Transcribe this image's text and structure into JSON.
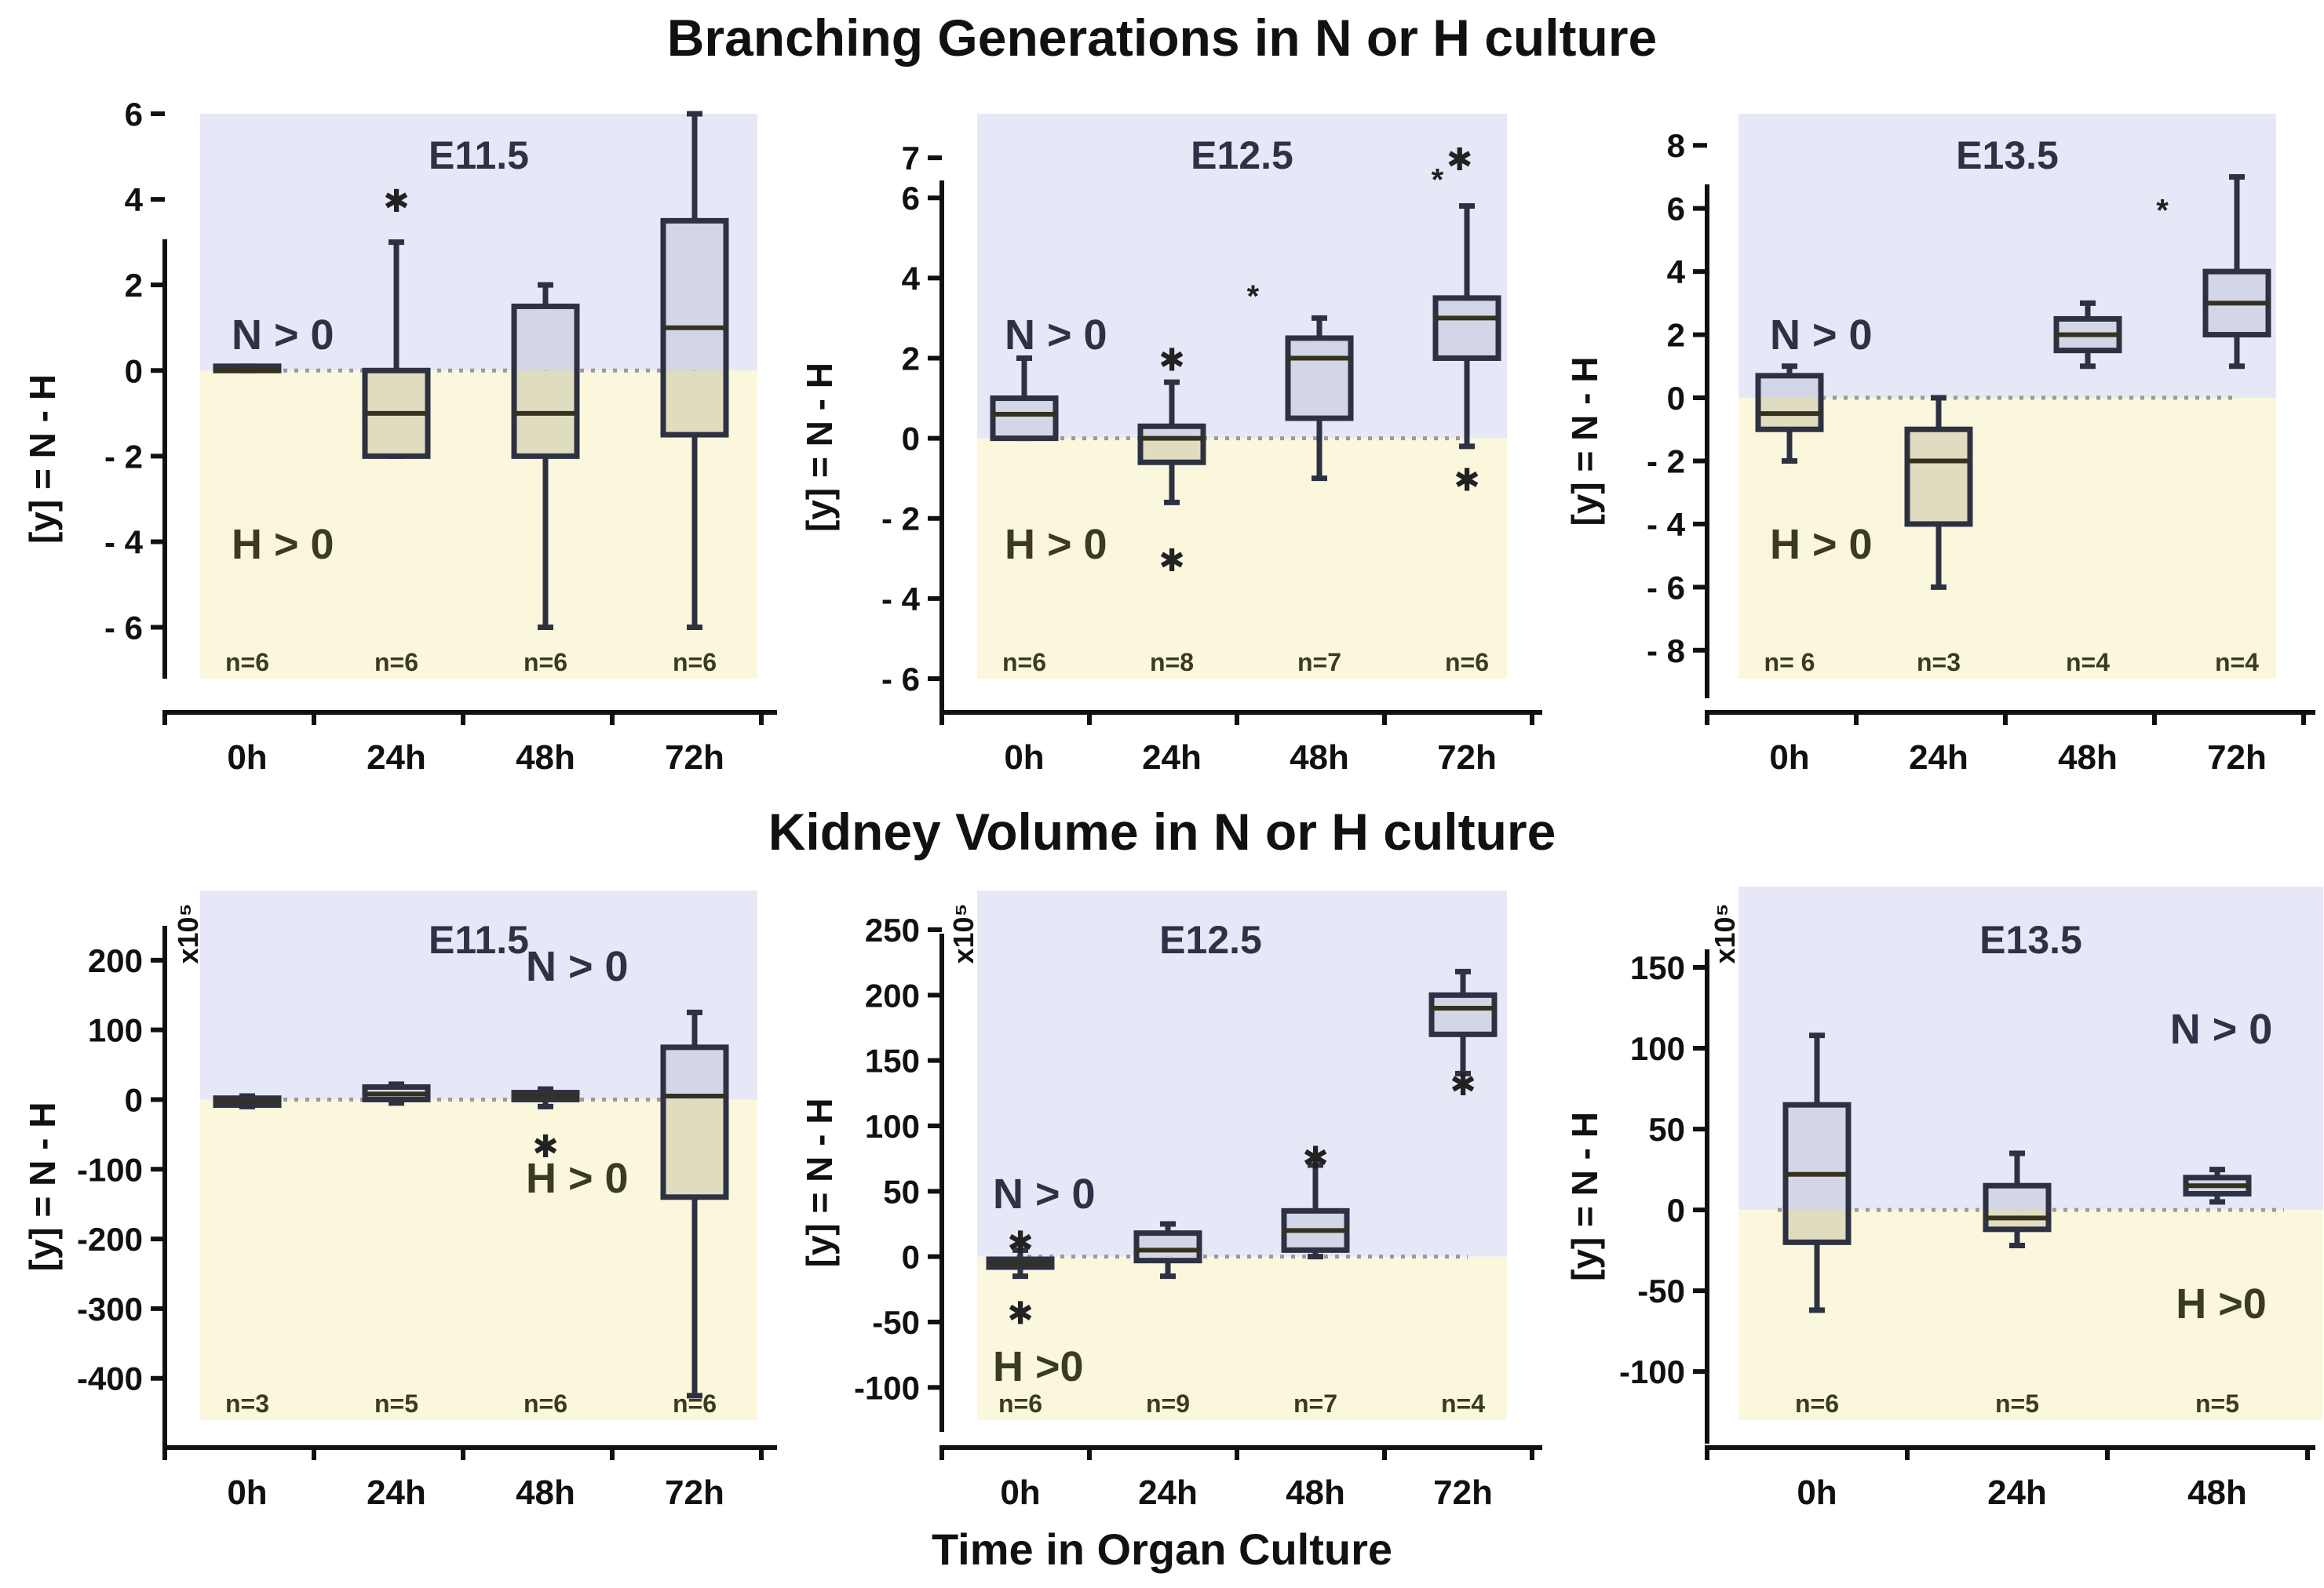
{
  "titles": {
    "branching": "Branching Generations in N or H culture",
    "volume": "Kidney Volume in N or H culture",
    "xaxis": "Time in Organ Culture"
  },
  "colors": {
    "n_region": "#e6e8f8",
    "h_region": "#fbf7dc",
    "box_n": "#d3d6e6",
    "box_h": "#e0dcc0",
    "box_stroke": "#2d3142",
    "box_stroke_h": "#34321e",
    "text_n": "#2e3247",
    "text_h": "#3b3a22"
  },
  "chart_data": [
    {
      "id": "branch-e115",
      "type": "box",
      "title": "E11.5",
      "ylabel": "[y] = N - H",
      "ylim": [
        -7.2,
        6
      ],
      "yticks": [
        6,
        4,
        2,
        0,
        -2,
        -4,
        -6
      ],
      "ytick_labels": [
        "6",
        "4",
        "2",
        "0",
        "- 2",
        "- 4",
        "- 6"
      ],
      "categories": [
        "0h",
        "24h",
        "48h",
        "72h"
      ],
      "label_n": "N > 0",
      "label_h": "H > 0",
      "multiplier": "",
      "boxes": [
        {
          "cat": "0h",
          "min": 0,
          "q1": 0,
          "median": 0,
          "q3": 0.1,
          "max": 0.1,
          "n": "n=6",
          "outliers": []
        },
        {
          "cat": "24h",
          "min": -2,
          "q1": -2,
          "median": -1,
          "q3": 0,
          "max": 3,
          "n": "n=6",
          "outliers": [
            {
              "y": 4,
              "sym": "✱"
            }
          ]
        },
        {
          "cat": "48h",
          "min": -6,
          "q1": -2,
          "median": -1,
          "q3": 1.5,
          "max": 2,
          "n": "n=6",
          "outliers": []
        },
        {
          "cat": "72h",
          "min": -6,
          "q1": -1.5,
          "median": 1,
          "q3": 3.5,
          "max": 6,
          "n": "n=6",
          "outliers": []
        }
      ]
    },
    {
      "id": "branch-e125",
      "type": "box",
      "title": "E12.5",
      "ylabel": "[y] = N - H",
      "ylim": [
        -6,
        8.1
      ],
      "yticks": [
        7,
        6,
        4,
        2,
        0,
        -2,
        -4,
        -6
      ],
      "ytick_labels": [
        "7",
        "6",
        "4",
        "2",
        "0",
        "- 2",
        "- 4",
        "- 6"
      ],
      "categories": [
        "0h",
        "24h",
        "48h",
        "72h"
      ],
      "label_n": "N > 0",
      "label_h": "H > 0",
      "multiplier": "",
      "boxes": [
        {
          "cat": "0h",
          "min": 0,
          "q1": 0,
          "median": 0.6,
          "q3": 1,
          "max": 2,
          "n": "n=6",
          "outliers": []
        },
        {
          "cat": "24h",
          "min": -1.6,
          "q1": -0.6,
          "median": 0,
          "q3": 0.3,
          "max": 1.4,
          "n": "n=8",
          "outliers": [
            {
              "y": 2,
              "sym": "✱"
            },
            {
              "y": -3,
              "sym": "✱"
            }
          ]
        },
        {
          "cat": "48h",
          "min": -1,
          "q1": 0.5,
          "median": 2,
          "q3": 2.5,
          "max": 3,
          "n": "n=7",
          "outliers": [
            {
              "y": 3.6,
              "sym": "*",
              "dx": -0.45
            }
          ]
        },
        {
          "cat": "72h",
          "min": -0.2,
          "q1": 2,
          "median": 3,
          "q3": 3.5,
          "max": 5.8,
          "n": "n=6",
          "outliers": [
            {
              "y": 6.5,
              "sym": "*",
              "dx": -0.2
            },
            {
              "y": 7,
              "sym": "✱",
              "dx": -0.05
            },
            {
              "y": -1,
              "sym": "✱"
            }
          ]
        }
      ]
    },
    {
      "id": "branch-e135",
      "type": "box",
      "title": "E13.5",
      "ylabel": "[y] = N - H",
      "ylim": [
        -8.9,
        9
      ],
      "yticks": [
        8,
        6,
        4,
        2,
        0,
        -2,
        -4,
        -6,
        -8
      ],
      "ytick_labels": [
        "8",
        "6",
        "4",
        "2",
        "0",
        "- 2",
        "- 4",
        "- 6",
        "- 8"
      ],
      "categories": [
        "0h",
        "24h",
        "48h",
        "72h"
      ],
      "label_n": "N > 0",
      "label_h": "H > 0",
      "multiplier": "",
      "boxes": [
        {
          "cat": "0h",
          "min": -2,
          "q1": -1,
          "median": -0.5,
          "q3": 0.7,
          "max": 1,
          "n": "n= 6",
          "outliers": []
        },
        {
          "cat": "24h",
          "min": -6,
          "q1": -4,
          "median": -2,
          "q3": -1,
          "max": 0,
          "n": "n=3",
          "outliers": []
        },
        {
          "cat": "48h",
          "min": 1,
          "q1": 1.5,
          "median": 2,
          "q3": 2.5,
          "max": 3,
          "n": "n=4",
          "outliers": []
        },
        {
          "cat": "72h",
          "min": 1,
          "q1": 2,
          "median": 3,
          "q3": 4,
          "max": 7,
          "n": "n=4",
          "outliers": [
            {
              "y": 6,
              "sym": "*",
              "dx": -0.5
            }
          ]
        }
      ]
    },
    {
      "id": "volume-e115",
      "type": "box",
      "title": "E11.5",
      "ylabel": "[y] = N - H",
      "ylim": [
        -460,
        300
      ],
      "yticks": [
        200,
        100,
        0,
        -100,
        -200,
        -300,
        -400
      ],
      "ytick_labels": [
        "200",
        "100",
        "0",
        "-100",
        "-200",
        "-300",
        "-400"
      ],
      "categories": [
        "0h",
        "24h",
        "48h",
        "72h"
      ],
      "label_n": "N > 0",
      "label_h": "H > 0",
      "multiplier": "x10⁵",
      "boxes": [
        {
          "cat": "0h",
          "min": -10,
          "q1": -8,
          "median": -3,
          "q3": 2,
          "max": 5,
          "n": "n=3",
          "outliers": []
        },
        {
          "cat": "24h",
          "min": -5,
          "q1": 0,
          "median": 8,
          "q3": 18,
          "max": 22,
          "n": "n=5",
          "outliers": []
        },
        {
          "cat": "48h",
          "min": -10,
          "q1": 0,
          "median": 5,
          "q3": 10,
          "max": 15,
          "n": "n=6",
          "outliers": [
            {
              "y": -65,
              "sym": "✱"
            }
          ]
        },
        {
          "cat": "72h",
          "min": -425,
          "q1": -140,
          "median": 5,
          "q3": 75,
          "max": 125,
          "n": "n=6",
          "outliers": []
        }
      ]
    },
    {
      "id": "volume-e125",
      "type": "box",
      "title": "E12.5",
      "ylabel": "[y] = N - H",
      "ylim": [
        -125,
        280
      ],
      "yticks": [
        250,
        200,
        150,
        100,
        50,
        0,
        -50,
        -100
      ],
      "ytick_labels": [
        "250",
        "200",
        "150",
        "100",
        "50",
        "0",
        "-50",
        "-100"
      ],
      "categories": [
        "0h",
        "24h",
        "48h",
        "72h"
      ],
      "label_n": "N > 0",
      "label_h": "H >0",
      "multiplier": "x10⁵",
      "boxes": [
        {
          "cat": "0h",
          "min": -15,
          "q1": -8,
          "median": -5,
          "q3": -2,
          "max": 5,
          "n": "n=6",
          "outliers": [
            {
              "y": 12,
              "sym": "✱"
            },
            {
              "y": -42,
              "sym": "✱"
            }
          ]
        },
        {
          "cat": "24h",
          "min": -15,
          "q1": -3,
          "median": 5,
          "q3": 18,
          "max": 25,
          "n": "n=9",
          "outliers": []
        },
        {
          "cat": "48h",
          "min": 0,
          "q1": 5,
          "median": 20,
          "q3": 35,
          "max": 70,
          "n": "n=7",
          "outliers": [
            {
              "y": 77,
              "sym": "✱"
            }
          ]
        },
        {
          "cat": "72h",
          "min": 140,
          "q1": 170,
          "median": 190,
          "q3": 200,
          "max": 218,
          "n": "n=4",
          "outliers": [
            {
              "y": 133,
              "sym": "✱"
            }
          ]
        }
      ]
    },
    {
      "id": "volume-e135",
      "type": "box",
      "title": "E13.5",
      "ylabel": "[y] = N - H",
      "ylim": [
        -130,
        200
      ],
      "yticks": [
        150,
        100,
        50,
        0,
        -50,
        -100
      ],
      "ytick_labels": [
        "150",
        "100",
        "50",
        "0",
        "-50",
        "-100"
      ],
      "categories": [
        "0h",
        "24h",
        "48h"
      ],
      "label_n": "N > 0",
      "label_h": "H >0",
      "multiplier": "x10⁵",
      "boxes": [
        {
          "cat": "0h",
          "min": -62,
          "q1": -20,
          "median": 22,
          "q3": 65,
          "max": 108,
          "n": "n=6",
          "outliers": []
        },
        {
          "cat": "24h",
          "min": -22,
          "q1": -12,
          "median": -5,
          "q3": 15,
          "max": 35,
          "n": "n=5",
          "outliers": []
        },
        {
          "cat": "48h",
          "min": 5,
          "q1": 10,
          "median": 15,
          "q3": 20,
          "max": 25,
          "n": "n=5",
          "outliers": []
        }
      ]
    }
  ]
}
